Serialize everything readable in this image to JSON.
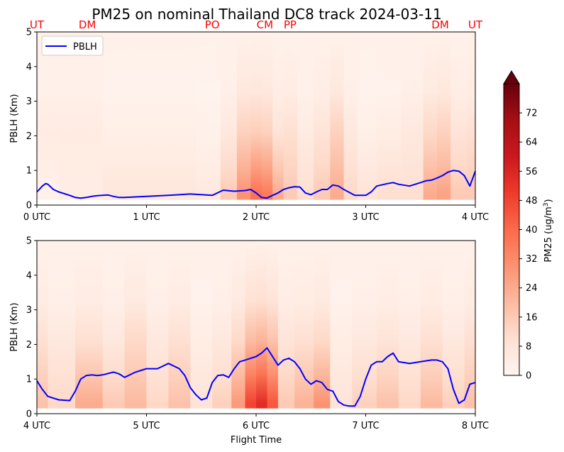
{
  "chart_data": {
    "type": "heatmap",
    "title": "PM25 on nominal Thailand DC8 track 2024-03-11",
    "colormap": "Reds",
    "line_color": "#0000ff",
    "site_label_color": "#ff0000",
    "site_labels": [
      {
        "label": "UT",
        "time": 0.0
      },
      {
        "label": "DM",
        "time": 0.46
      },
      {
        "label": "PO",
        "time": 1.6
      },
      {
        "label": "CM",
        "time": 2.08
      },
      {
        "label": "PP",
        "time": 2.31
      },
      {
        "label": "DM",
        "time": 3.68
      },
      {
        "label": "UT",
        "time": 4.0
      }
    ],
    "panels": [
      {
        "ylabel": "PBLH (Km)",
        "xlabel": "",
        "ylim": [
          0,
          5
        ],
        "yticks": [
          "0",
          "1",
          "2",
          "3",
          "4",
          "5"
        ],
        "xlim": [
          0,
          4
        ],
        "xticks": [
          "0 UTC",
          "1 UTC",
          "2 UTC",
          "3 UTC",
          "4 UTC"
        ],
        "legend": {
          "position": "top-left",
          "entries": [
            "PBLH"
          ]
        },
        "series": [
          {
            "name": "PBLH",
            "x": [
              0,
              0.05,
              0.08,
              0.1,
              0.15,
              0.2,
              0.3,
              0.35,
              0.4,
              0.45,
              0.5,
              0.55,
              0.6,
              0.65,
              0.7,
              0.75,
              0.8,
              1.0,
              1.2,
              1.4,
              1.6,
              1.7,
              1.8,
              1.9,
              1.95,
              2.0,
              2.05,
              2.1,
              2.15,
              2.2,
              2.25,
              2.3,
              2.35,
              2.4,
              2.45,
              2.5,
              2.55,
              2.6,
              2.65,
              2.7,
              2.75,
              2.8,
              2.9,
              3.0,
              3.05,
              3.1,
              3.2,
              3.25,
              3.3,
              3.4,
              3.5,
              3.55,
              3.6,
              3.65,
              3.7,
              3.75,
              3.8,
              3.85,
              3.9,
              3.95,
              4.0
            ],
            "y": [
              0.38,
              0.55,
              0.62,
              0.6,
              0.45,
              0.38,
              0.28,
              0.22,
              0.2,
              0.22,
              0.25,
              0.27,
              0.28,
              0.29,
              0.25,
              0.22,
              0.22,
              0.25,
              0.28,
              0.32,
              0.28,
              0.43,
              0.4,
              0.42,
              0.45,
              0.35,
              0.22,
              0.2,
              0.28,
              0.35,
              0.45,
              0.5,
              0.53,
              0.52,
              0.35,
              0.3,
              0.38,
              0.45,
              0.45,
              0.58,
              0.55,
              0.45,
              0.28,
              0.28,
              0.38,
              0.55,
              0.62,
              0.65,
              0.6,
              0.55,
              0.65,
              0.7,
              0.72,
              0.78,
              0.85,
              0.95,
              1.0,
              0.98,
              0.85,
              0.55,
              0.98
            ]
          }
        ],
        "heat": [
          [
            0,
            5,
            2
          ],
          [
            0.4,
            5,
            4
          ],
          [
            0.8,
            3,
            7
          ],
          [
            1.3,
            3,
            7
          ],
          [
            1.6,
            2,
            6
          ],
          [
            1.75,
            6,
            16
          ],
          [
            1.9,
            14,
            30
          ],
          [
            2.0,
            15,
            38
          ],
          [
            2.1,
            14,
            36
          ],
          [
            2.2,
            8,
            24
          ],
          [
            2.3,
            10,
            16
          ],
          [
            2.45,
            5,
            10
          ],
          [
            2.6,
            8,
            16
          ],
          [
            2.75,
            14,
            24
          ],
          [
            2.85,
            6,
            12
          ],
          [
            3.0,
            3,
            8
          ],
          [
            3.2,
            4,
            10
          ],
          [
            3.45,
            6,
            10
          ],
          [
            3.6,
            12,
            24
          ],
          [
            3.7,
            14,
            26
          ],
          [
            3.85,
            8,
            16
          ],
          [
            4.0,
            10,
            16
          ]
        ]
      },
      {
        "ylabel": "PBLH (Km)",
        "xlabel": "Flight Time",
        "ylim": [
          0,
          5
        ],
        "yticks": [
          "0",
          "1",
          "2",
          "3",
          "4",
          "5"
        ],
        "xlim": [
          4,
          8
        ],
        "xticks": [
          "4 UTC",
          "5 UTC",
          "6 UTC",
          "7 UTC",
          "8 UTC"
        ],
        "series": [
          {
            "name": "PBLH",
            "x": [
              4.0,
              4.05,
              4.1,
              4.2,
              4.3,
              4.35,
              4.4,
              4.45,
              4.5,
              4.55,
              4.6,
              4.7,
              4.75,
              4.8,
              4.9,
              4.95,
              5.0,
              5.1,
              5.2,
              5.3,
              5.35,
              5.4,
              5.45,
              5.5,
              5.55,
              5.6,
              5.65,
              5.7,
              5.75,
              5.8,
              5.85,
              5.9,
              5.95,
              6.0,
              6.05,
              6.1,
              6.15,
              6.2,
              6.25,
              6.3,
              6.35,
              6.4,
              6.45,
              6.5,
              6.55,
              6.6,
              6.65,
              6.7,
              6.75,
              6.8,
              6.85,
              6.9,
              6.95,
              7.0,
              7.05,
              7.1,
              7.15,
              7.2,
              7.25,
              7.3,
              7.4,
              7.5,
              7.6,
              7.65,
              7.7,
              7.75,
              7.8,
              7.85,
              7.9,
              7.95,
              8.0
            ],
            "y": [
              0.95,
              0.7,
              0.5,
              0.4,
              0.38,
              0.65,
              1.0,
              1.1,
              1.12,
              1.1,
              1.12,
              1.2,
              1.15,
              1.05,
              1.2,
              1.25,
              1.3,
              1.3,
              1.45,
              1.3,
              1.1,
              0.75,
              0.55,
              0.4,
              0.45,
              0.9,
              1.1,
              1.12,
              1.05,
              1.3,
              1.5,
              1.55,
              1.6,
              1.65,
              1.75,
              1.9,
              1.65,
              1.4,
              1.55,
              1.6,
              1.5,
              1.3,
              1.0,
              0.85,
              0.95,
              0.9,
              0.7,
              0.65,
              0.35,
              0.25,
              0.22,
              0.22,
              0.5,
              1.0,
              1.4,
              1.5,
              1.5,
              1.65,
              1.75,
              1.5,
              1.45,
              1.5,
              1.55,
              1.55,
              1.5,
              1.3,
              0.7,
              0.3,
              0.4,
              0.85,
              0.9
            ]
          }
        ],
        "heat": [
          [
            4.0,
            10,
            18
          ],
          [
            4.2,
            6,
            12
          ],
          [
            4.5,
            10,
            24
          ],
          [
            4.7,
            6,
            16
          ],
          [
            4.9,
            12,
            20
          ],
          [
            5.1,
            6,
            12
          ],
          [
            5.3,
            10,
            18
          ],
          [
            5.5,
            4,
            8
          ],
          [
            5.7,
            6,
            14
          ],
          [
            5.85,
            12,
            28
          ],
          [
            5.95,
            20,
            48
          ],
          [
            6.05,
            22,
            54
          ],
          [
            6.15,
            18,
            44
          ],
          [
            6.25,
            8,
            16
          ],
          [
            6.45,
            10,
            22
          ],
          [
            6.6,
            12,
            30
          ],
          [
            6.75,
            4,
            8
          ],
          [
            7.0,
            6,
            14
          ],
          [
            7.2,
            8,
            18
          ],
          [
            7.4,
            6,
            12
          ],
          [
            7.6,
            10,
            20
          ],
          [
            7.8,
            6,
            14
          ],
          [
            8.0,
            10,
            18
          ]
        ]
      }
    ],
    "colorbar": {
      "label": "PM25 (ug/m3)",
      "label_main": "PM25 (ug/m",
      "label_sup": "3",
      "label_end": ")",
      "vmin": 0,
      "vmax": 80,
      "ticks": [
        "0",
        "8",
        "16",
        "24",
        "32",
        "40",
        "48",
        "56",
        "64",
        "72"
      ],
      "extend": "max"
    }
  }
}
